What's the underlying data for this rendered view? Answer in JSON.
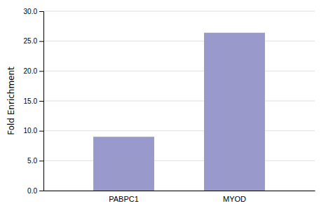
{
  "chart_data": {
    "type": "bar",
    "categories": [
      "PABPC1",
      "MYOD"
    ],
    "values": [
      9.0,
      26.4
    ],
    "color": "#9999cc",
    "ylabel": "Fold Enrichment",
    "ylim": [
      0,
      30
    ],
    "yticks": [
      {
        "value": 0,
        "label": "0.0"
      },
      {
        "value": 5,
        "label": "5.0"
      },
      {
        "value": 10,
        "label": "10.0"
      },
      {
        "value": 15,
        "label": "15.0"
      },
      {
        "value": 20,
        "label": "20.0"
      },
      {
        "value": 25,
        "label": "25.0"
      },
      {
        "value": 30,
        "label": "30.0"
      }
    ],
    "grid": true
  }
}
